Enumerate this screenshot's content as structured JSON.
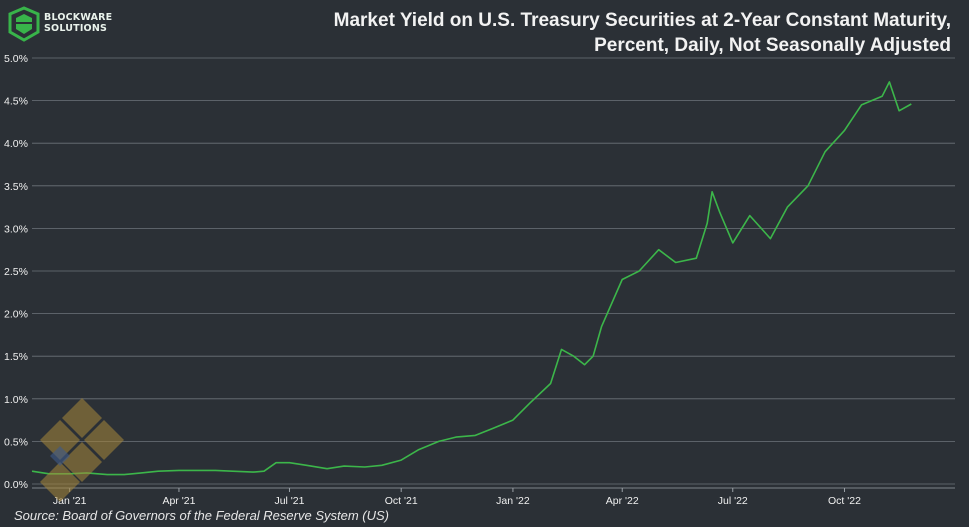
{
  "logo": {
    "line1": "BLOCKWARE",
    "line2": "SOLUTIONS",
    "accent": "#38b44a"
  },
  "title": {
    "line1": "Market Yield on U.S. Treasury Securities at 2-Year Constant Maturity,",
    "line2": "Percent, Daily, Not Seasonally Adjusted"
  },
  "source": "Source: Board of Governors of the Federal Reserve System (US)",
  "colors": {
    "background": "#2b3036",
    "line": "#3cb64a",
    "grid": "#6d737a"
  },
  "chart_data": {
    "type": "line",
    "title": "Market Yield on U.S. Treasury Securities at 2-Year Constant Maturity, Percent, Daily, Not Seasonally Adjusted",
    "xlabel": "",
    "ylabel": "",
    "xlim": [
      "2020-12-01",
      "2022-12-31"
    ],
    "ylim": [
      0,
      5
    ],
    "y_ticks": [
      "0.0%",
      "0.5%",
      "1.0%",
      "1.5%",
      "2.0%",
      "2.5%",
      "3.0%",
      "3.5%",
      "4.0%",
      "4.5%",
      "5.0%"
    ],
    "x_ticks": [
      {
        "label": "Jan '21",
        "date": "2021-01-01"
      },
      {
        "label": "Apr '21",
        "date": "2021-04-01"
      },
      {
        "label": "Jul '21",
        "date": "2021-07-01"
      },
      {
        "label": "Oct '21",
        "date": "2021-10-01"
      },
      {
        "label": "Jan '22",
        "date": "2022-01-01"
      },
      {
        "label": "Apr '22",
        "date": "2022-04-01"
      },
      {
        "label": "Jul '22",
        "date": "2022-07-01"
      },
      {
        "label": "Oct '22",
        "date": "2022-10-01"
      }
    ],
    "grid": "horizontal",
    "series": [
      {
        "name": "",
        "color": "#3cb64a",
        "points": [
          [
            "2020-12-01",
            0.15
          ],
          [
            "2020-12-15",
            0.12
          ],
          [
            "2021-01-01",
            0.12
          ],
          [
            "2021-01-15",
            0.13
          ],
          [
            "2021-02-01",
            0.11
          ],
          [
            "2021-02-15",
            0.11
          ],
          [
            "2021-03-01",
            0.13
          ],
          [
            "2021-03-15",
            0.15
          ],
          [
            "2021-04-01",
            0.16
          ],
          [
            "2021-04-15",
            0.16
          ],
          [
            "2021-05-01",
            0.16
          ],
          [
            "2021-05-15",
            0.15
          ],
          [
            "2021-06-01",
            0.14
          ],
          [
            "2021-06-10",
            0.15
          ],
          [
            "2021-06-20",
            0.25
          ],
          [
            "2021-07-01",
            0.25
          ],
          [
            "2021-07-15",
            0.22
          ],
          [
            "2021-08-01",
            0.18
          ],
          [
            "2021-08-15",
            0.21
          ],
          [
            "2021-09-01",
            0.2
          ],
          [
            "2021-09-15",
            0.22
          ],
          [
            "2021-10-01",
            0.28
          ],
          [
            "2021-10-15",
            0.4
          ],
          [
            "2021-11-01",
            0.5
          ],
          [
            "2021-11-15",
            0.55
          ],
          [
            "2021-12-01",
            0.57
          ],
          [
            "2021-12-15",
            0.65
          ],
          [
            "2022-01-01",
            0.75
          ],
          [
            "2022-01-15",
            0.95
          ],
          [
            "2022-02-01",
            1.18
          ],
          [
            "2022-02-10",
            1.58
          ],
          [
            "2022-02-20",
            1.5
          ],
          [
            "2022-03-01",
            1.4
          ],
          [
            "2022-03-08",
            1.5
          ],
          [
            "2022-03-15",
            1.85
          ],
          [
            "2022-04-01",
            2.4
          ],
          [
            "2022-04-15",
            2.5
          ],
          [
            "2022-05-01",
            2.75
          ],
          [
            "2022-05-15",
            2.6
          ],
          [
            "2022-06-01",
            2.65
          ],
          [
            "2022-06-10",
            3.06
          ],
          [
            "2022-06-14",
            3.43
          ],
          [
            "2022-06-20",
            3.2
          ],
          [
            "2022-07-01",
            2.83
          ],
          [
            "2022-07-15",
            3.15
          ],
          [
            "2022-08-01",
            2.88
          ],
          [
            "2022-08-15",
            3.25
          ],
          [
            "2022-09-01",
            3.5
          ],
          [
            "2022-09-15",
            3.9
          ],
          [
            "2022-10-01",
            4.15
          ],
          [
            "2022-10-15",
            4.45
          ],
          [
            "2022-11-01",
            4.55
          ],
          [
            "2022-11-07",
            4.72
          ],
          [
            "2022-11-15",
            4.38
          ],
          [
            "2022-11-25",
            4.46
          ]
        ]
      }
    ]
  }
}
